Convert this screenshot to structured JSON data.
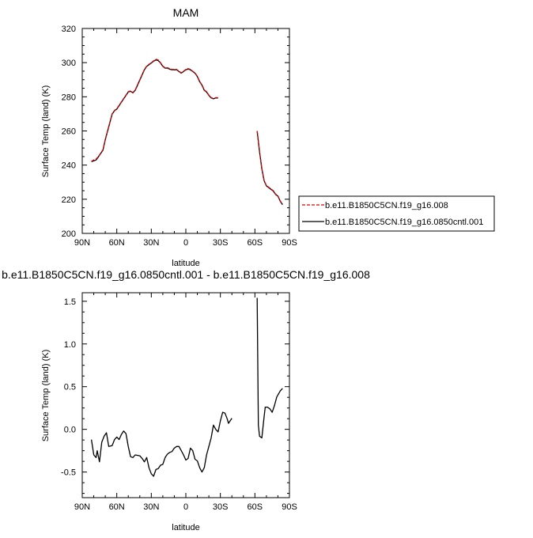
{
  "chart_data": [
    {
      "type": "line",
      "title": "MAM",
      "xlabel": "latitude",
      "ylabel": "Surface Temp (land) (K)",
      "xlim": [
        90,
        -90
      ],
      "ylim": [
        200,
        320
      ],
      "x_ticks": [
        90,
        60,
        30,
        0,
        -30,
        -60,
        -90
      ],
      "x_tick_labels": [
        "90N",
        "60N",
        "30N",
        "0",
        "30S",
        "60S",
        "90S"
      ],
      "y_ticks": [
        200,
        220,
        240,
        260,
        280,
        300,
        320
      ],
      "y_tick_labels": [
        "200",
        "220",
        "240",
        "260",
        "280",
        "300",
        "320"
      ],
      "legend_position": "right",
      "series": [
        {
          "name": "b.e11.B1850C5CN.f19_g16.008",
          "color": "#d60000",
          "dash": "dashed",
          "segments": [
            [
              [
                82,
                242.2
              ],
              [
                80,
                243
              ],
              [
                78,
                243.5
              ],
              [
                76,
                245
              ],
              [
                74,
                247
              ],
              [
                72,
                249
              ],
              [
                70,
                255
              ],
              [
                68,
                260
              ],
              [
                66,
                265
              ],
              [
                64,
                270
              ],
              [
                62,
                272
              ],
              [
                60,
                273
              ],
              [
                58,
                275
              ],
              [
                56,
                277
              ],
              [
                54,
                279
              ],
              [
                52,
                281
              ],
              [
                50,
                283
              ],
              [
                48,
                283.5
              ],
              [
                46,
                282.5
              ],
              [
                44,
                284
              ],
              [
                42,
                287
              ],
              [
                40,
                290
              ],
              [
                38,
                293
              ],
              [
                36,
                296
              ],
              [
                34,
                298
              ],
              [
                32,
                299
              ],
              [
                30,
                300
              ],
              [
                28,
                301
              ],
              [
                26,
                302
              ],
              [
                24,
                301.5
              ],
              [
                22,
                300
              ],
              [
                20,
                298
              ],
              [
                18,
                297
              ],
              [
                16,
                297
              ],
              [
                14,
                296.5
              ],
              [
                12,
                296
              ],
              [
                10,
                296
              ],
              [
                8,
                296
              ],
              [
                6,
                295
              ],
              [
                4,
                294
              ],
              [
                2,
                295
              ],
              [
                0,
                296
              ],
              [
                -2,
                296.5
              ],
              [
                -4,
                296
              ],
              [
                -6,
                295
              ],
              [
                -8,
                294
              ],
              [
                -10,
                292
              ],
              [
                -12,
                289
              ],
              [
                -14,
                287
              ],
              [
                -16,
                284
              ],
              [
                -18,
                283
              ],
              [
                -20,
                281
              ],
              [
                -22,
                279.5
              ],
              [
                -24,
                279
              ],
              [
                -26,
                279.5
              ],
              [
                -28,
                279.5
              ]
            ],
            [
              [
                -62,
                260
              ],
              [
                -64,
                248
              ],
              [
                -66,
                238
              ],
              [
                -68,
                231
              ],
              [
                -70,
                228
              ],
              [
                -72,
                227
              ],
              [
                -74,
                226
              ],
              [
                -76,
                225
              ],
              [
                -78,
                223
              ],
              [
                -80,
                222
              ],
              [
                -82,
                219
              ],
              [
                -84,
                217
              ]
            ]
          ]
        },
        {
          "name": "b.e11.B1850C5CN.f19_g16.0850cntl.001",
          "color": "#000000",
          "dash": "solid",
          "segments": [
            [
              [
                82,
                242
              ],
              [
                80,
                242.5
              ],
              [
                78,
                243
              ],
              [
                76,
                244.8
              ],
              [
                74,
                246.8
              ],
              [
                72,
                248.7
              ],
              [
                70,
                254.8
              ],
              [
                68,
                259.8
              ],
              [
                66,
                264.8
              ],
              [
                64,
                269.8
              ],
              [
                62,
                271.8
              ],
              [
                60,
                272.8
              ],
              [
                58,
                274.8
              ],
              [
                56,
                276.8
              ],
              [
                54,
                278.8
              ],
              [
                52,
                280.8
              ],
              [
                50,
                282.8
              ],
              [
                48,
                283.2
              ],
              [
                46,
                282.3
              ],
              [
                44,
                283.8
              ],
              [
                42,
                286.8
              ],
              [
                40,
                289.8
              ],
              [
                38,
                292.8
              ],
              [
                36,
                295.8
              ],
              [
                34,
                297.8
              ],
              [
                32,
                298.8
              ],
              [
                30,
                299.8
              ],
              [
                28,
                300.8
              ],
              [
                26,
                301.6
              ],
              [
                24,
                301.2
              ],
              [
                22,
                299.8
              ],
              [
                20,
                297.8
              ],
              [
                18,
                296.8
              ],
              [
                16,
                296.8
              ],
              [
                14,
                296.2
              ],
              [
                12,
                295.8
              ],
              [
                10,
                295.8
              ],
              [
                8,
                295.8
              ],
              [
                6,
                294.8
              ],
              [
                4,
                293.8
              ],
              [
                2,
                294.8
              ],
              [
                0,
                295.8
              ],
              [
                -2,
                296.3
              ],
              [
                -4,
                295.8
              ],
              [
                -6,
                294.8
              ],
              [
                -8,
                293.8
              ],
              [
                -10,
                291.8
              ],
              [
                -12,
                288.8
              ],
              [
                -14,
                286.8
              ],
              [
                -16,
                283.8
              ],
              [
                -18,
                282.8
              ],
              [
                -20,
                280.8
              ],
              [
                -22,
                279.3
              ],
              [
                -24,
                278.8
              ],
              [
                -26,
                279.3
              ],
              [
                -28,
                279.3
              ]
            ],
            [
              [
                -62,
                259.8
              ],
              [
                -64,
                247.8
              ],
              [
                -66,
                237.8
              ],
              [
                -68,
                230.8
              ],
              [
                -70,
                227.8
              ],
              [
                -72,
                226.8
              ],
              [
                -74,
                225.8
              ],
              [
                -76,
                224.8
              ],
              [
                -78,
                222.8
              ],
              [
                -80,
                221.8
              ],
              [
                -82,
                218.8
              ],
              [
                -84,
                216.8
              ]
            ]
          ]
        }
      ]
    },
    {
      "type": "line",
      "title": "b.e11.B1850C5CN.f19_g16.0850cntl.001 - b.e11.B1850C5CN.f19_g16.008",
      "xlabel": "latitude",
      "ylabel": "Surface Temp (land) (K)",
      "xlim": [
        90,
        -90
      ],
      "ylim": [
        -0.8,
        1.6
      ],
      "x_ticks": [
        90,
        60,
        30,
        0,
        -30,
        -60,
        -90
      ],
      "x_tick_labels": [
        "90N",
        "60N",
        "30N",
        "0",
        "30S",
        "60S",
        "90S"
      ],
      "y_ticks": [
        -0.5,
        0,
        0.5,
        1,
        1.5
      ],
      "y_tick_labels": [
        "-0.5",
        "0.0",
        "0.5",
        "1.0",
        "1.5"
      ],
      "series": [
        {
          "name": "",
          "color": "#000000",
          "dash": "solid",
          "segments": [
            [
              [
                82,
                -0.12
              ],
              [
                80,
                -0.3
              ],
              [
                78,
                -0.33
              ],
              [
                77,
                -0.25
              ],
              [
                75,
                -0.38
              ],
              [
                73,
                -0.15
              ],
              [
                71,
                -0.08
              ],
              [
                69,
                -0.04
              ],
              [
                67,
                -0.2
              ],
              [
                64,
                -0.19
              ],
              [
                62,
                -0.12
              ],
              [
                60,
                -0.09
              ],
              [
                58,
                -0.12
              ],
              [
                56,
                -0.06
              ],
              [
                54,
                -0.02
              ],
              [
                52,
                -0.05
              ],
              [
                50,
                -0.2
              ],
              [
                48,
                -0.32
              ],
              [
                46,
                -0.33
              ],
              [
                44,
                -0.3
              ],
              [
                40,
                -0.31
              ],
              [
                38,
                -0.34
              ],
              [
                36,
                -0.38
              ],
              [
                34,
                -0.33
              ],
              [
                32,
                -0.45
              ],
              [
                30,
                -0.52
              ],
              [
                28,
                -0.55
              ],
              [
                26,
                -0.47
              ],
              [
                24,
                -0.46
              ],
              [
                22,
                -0.42
              ],
              [
                20,
                -0.41
              ],
              [
                18,
                -0.33
              ],
              [
                16,
                -0.29
              ],
              [
                14,
                -0.27
              ],
              [
                12,
                -0.26
              ],
              [
                10,
                -0.22
              ],
              [
                8,
                -0.2
              ],
              [
                6,
                -0.2
              ],
              [
                4,
                -0.25
              ],
              [
                2,
                -0.3
              ],
              [
                0,
                -0.36
              ],
              [
                -2,
                -0.34
              ],
              [
                -4,
                -0.22
              ],
              [
                -6,
                -0.25
              ],
              [
                -8,
                -0.35
              ],
              [
                -10,
                -0.37
              ],
              [
                -12,
                -0.45
              ],
              [
                -14,
                -0.5
              ],
              [
                -16,
                -0.45
              ],
              [
                -18,
                -0.3
              ],
              [
                -20,
                -0.2
              ],
              [
                -22,
                -0.1
              ],
              [
                -24,
                0.05
              ],
              [
                -26,
                0.0
              ],
              [
                -28,
                -0.03
              ],
              [
                -30,
                0.1
              ],
              [
                -32,
                0.2
              ],
              [
                -34,
                0.19
              ],
              [
                -36,
                0.12
              ],
              [
                -37,
                0.07
              ],
              [
                -38,
                0.09
              ],
              [
                -40,
                0.13
              ]
            ],
            [
              [
                -62,
                1.54
              ],
              [
                -63,
                0.05
              ],
              [
                -64,
                -0.08
              ],
              [
                -66,
                -0.1
              ],
              [
                -68,
                0.15
              ],
              [
                -69,
                0.26
              ],
              [
                -71,
                0.26
              ],
              [
                -73,
                0.24
              ],
              [
                -75,
                0.2
              ],
              [
                -77,
                0.28
              ],
              [
                -79,
                0.38
              ],
              [
                -82,
                0.45
              ],
              [
                -84,
                0.48
              ]
            ]
          ]
        }
      ]
    }
  ]
}
